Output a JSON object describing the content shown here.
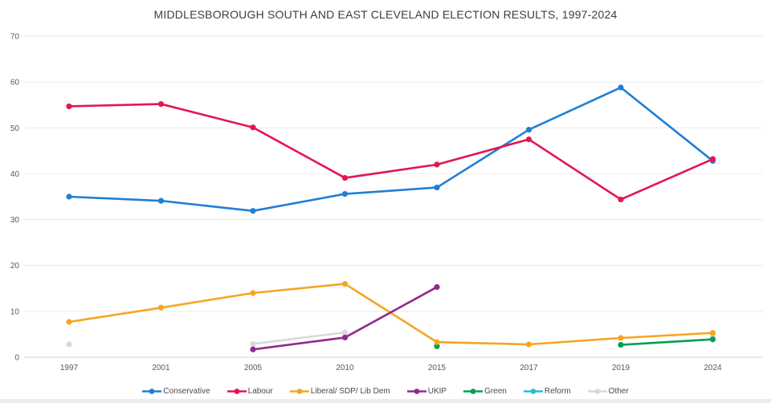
{
  "title": "MIDDLESBOROUGH SOUTH AND EAST CLEVELAND ELECTION RESULTS, 1997-2024",
  "chart_data": {
    "type": "line",
    "title": "MIDDLESBOROUGH SOUTH AND EAST CLEVELAND ELECTION RESULTS, 1997-2024",
    "xlabel": "",
    "ylabel": "",
    "categories": [
      "1997",
      "2001",
      "2005",
      "2010",
      "2015",
      "2017",
      "2019",
      "2024"
    ],
    "y_axis": {
      "min": 0,
      "max": 70,
      "tick_step": 10,
      "ticks": [
        70,
        60,
        50,
        40,
        30,
        20,
        10,
        0
      ]
    },
    "grid": true,
    "legend_position": "bottom",
    "series": [
      {
        "name": "Conservative",
        "color": "#1f7fd6",
        "values": [
          35.0,
          34.1,
          31.9,
          35.6,
          37.0,
          49.6,
          58.8,
          42.8
        ]
      },
      {
        "name": "Labour",
        "color": "#e4164f",
        "values": [
          54.7,
          55.2,
          50.1,
          39.1,
          42.0,
          47.5,
          34.4,
          43.2
        ]
      },
      {
        "name": "Liberal/ SDP/ Lib Dem",
        "color": "#f6a523",
        "values": [
          7.7,
          10.8,
          14.0,
          16.0,
          3.3,
          2.8,
          4.2,
          5.3
        ]
      },
      {
        "name": "UKIP",
        "color": "#93288f",
        "values": [
          null,
          null,
          1.7,
          4.3,
          15.3,
          null,
          null,
          null
        ]
      },
      {
        "name": "Green",
        "color": "#00a152",
        "values": [
          null,
          null,
          null,
          null,
          2.4,
          null,
          2.7,
          3.9
        ]
      },
      {
        "name": "Reform",
        "color": "#27c0d6",
        "values": [
          null,
          null,
          null,
          null,
          null,
          null,
          null,
          null
        ]
      },
      {
        "name": "Other",
        "color": "#d9d9d9",
        "values": [
          2.8,
          null,
          2.9,
          5.4,
          null,
          null,
          null,
          4.6
        ]
      }
    ]
  },
  "colors": {
    "background": "#ffffff",
    "gridline": "#ebebeb",
    "axis_line": "#d6d6d6",
    "title_text": "#3d3d3d",
    "axis_text": "#595959",
    "legend_text": "#4a4a4a",
    "bottom_strip": "#ededed"
  }
}
